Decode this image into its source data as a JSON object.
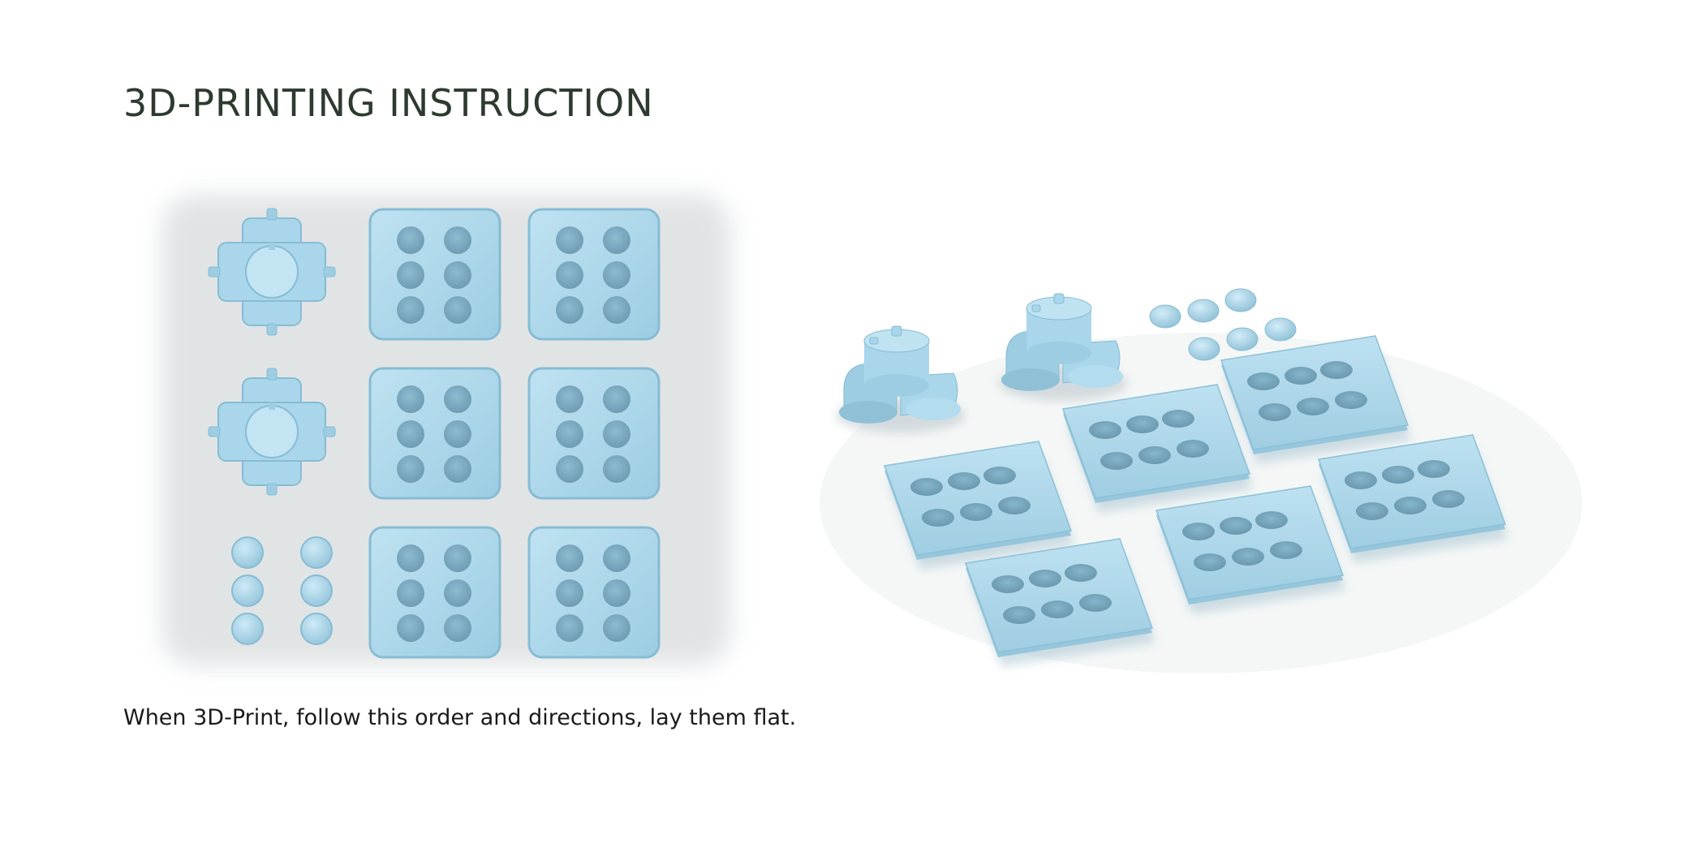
{
  "page": {
    "title": "3D-PRINTING INSTRUCTION",
    "caption": "When 3D-Print, follow this order and directions, lay them flat."
  },
  "colors": {
    "part_fill": "#a9d6ea",
    "part_edge": "#8cc0d6",
    "hole_fill": "#7aa9bf",
    "title": "#2e3a2f",
    "text": "#1a1a1a"
  },
  "figures": [
    {
      "name": "top-view-layout",
      "parts": {
        "connector": 2,
        "plate": 6,
        "ball": 6
      }
    },
    {
      "name": "perspective-render",
      "parts": {
        "connector": 2,
        "plate": 6,
        "ball": 6
      }
    }
  ]
}
